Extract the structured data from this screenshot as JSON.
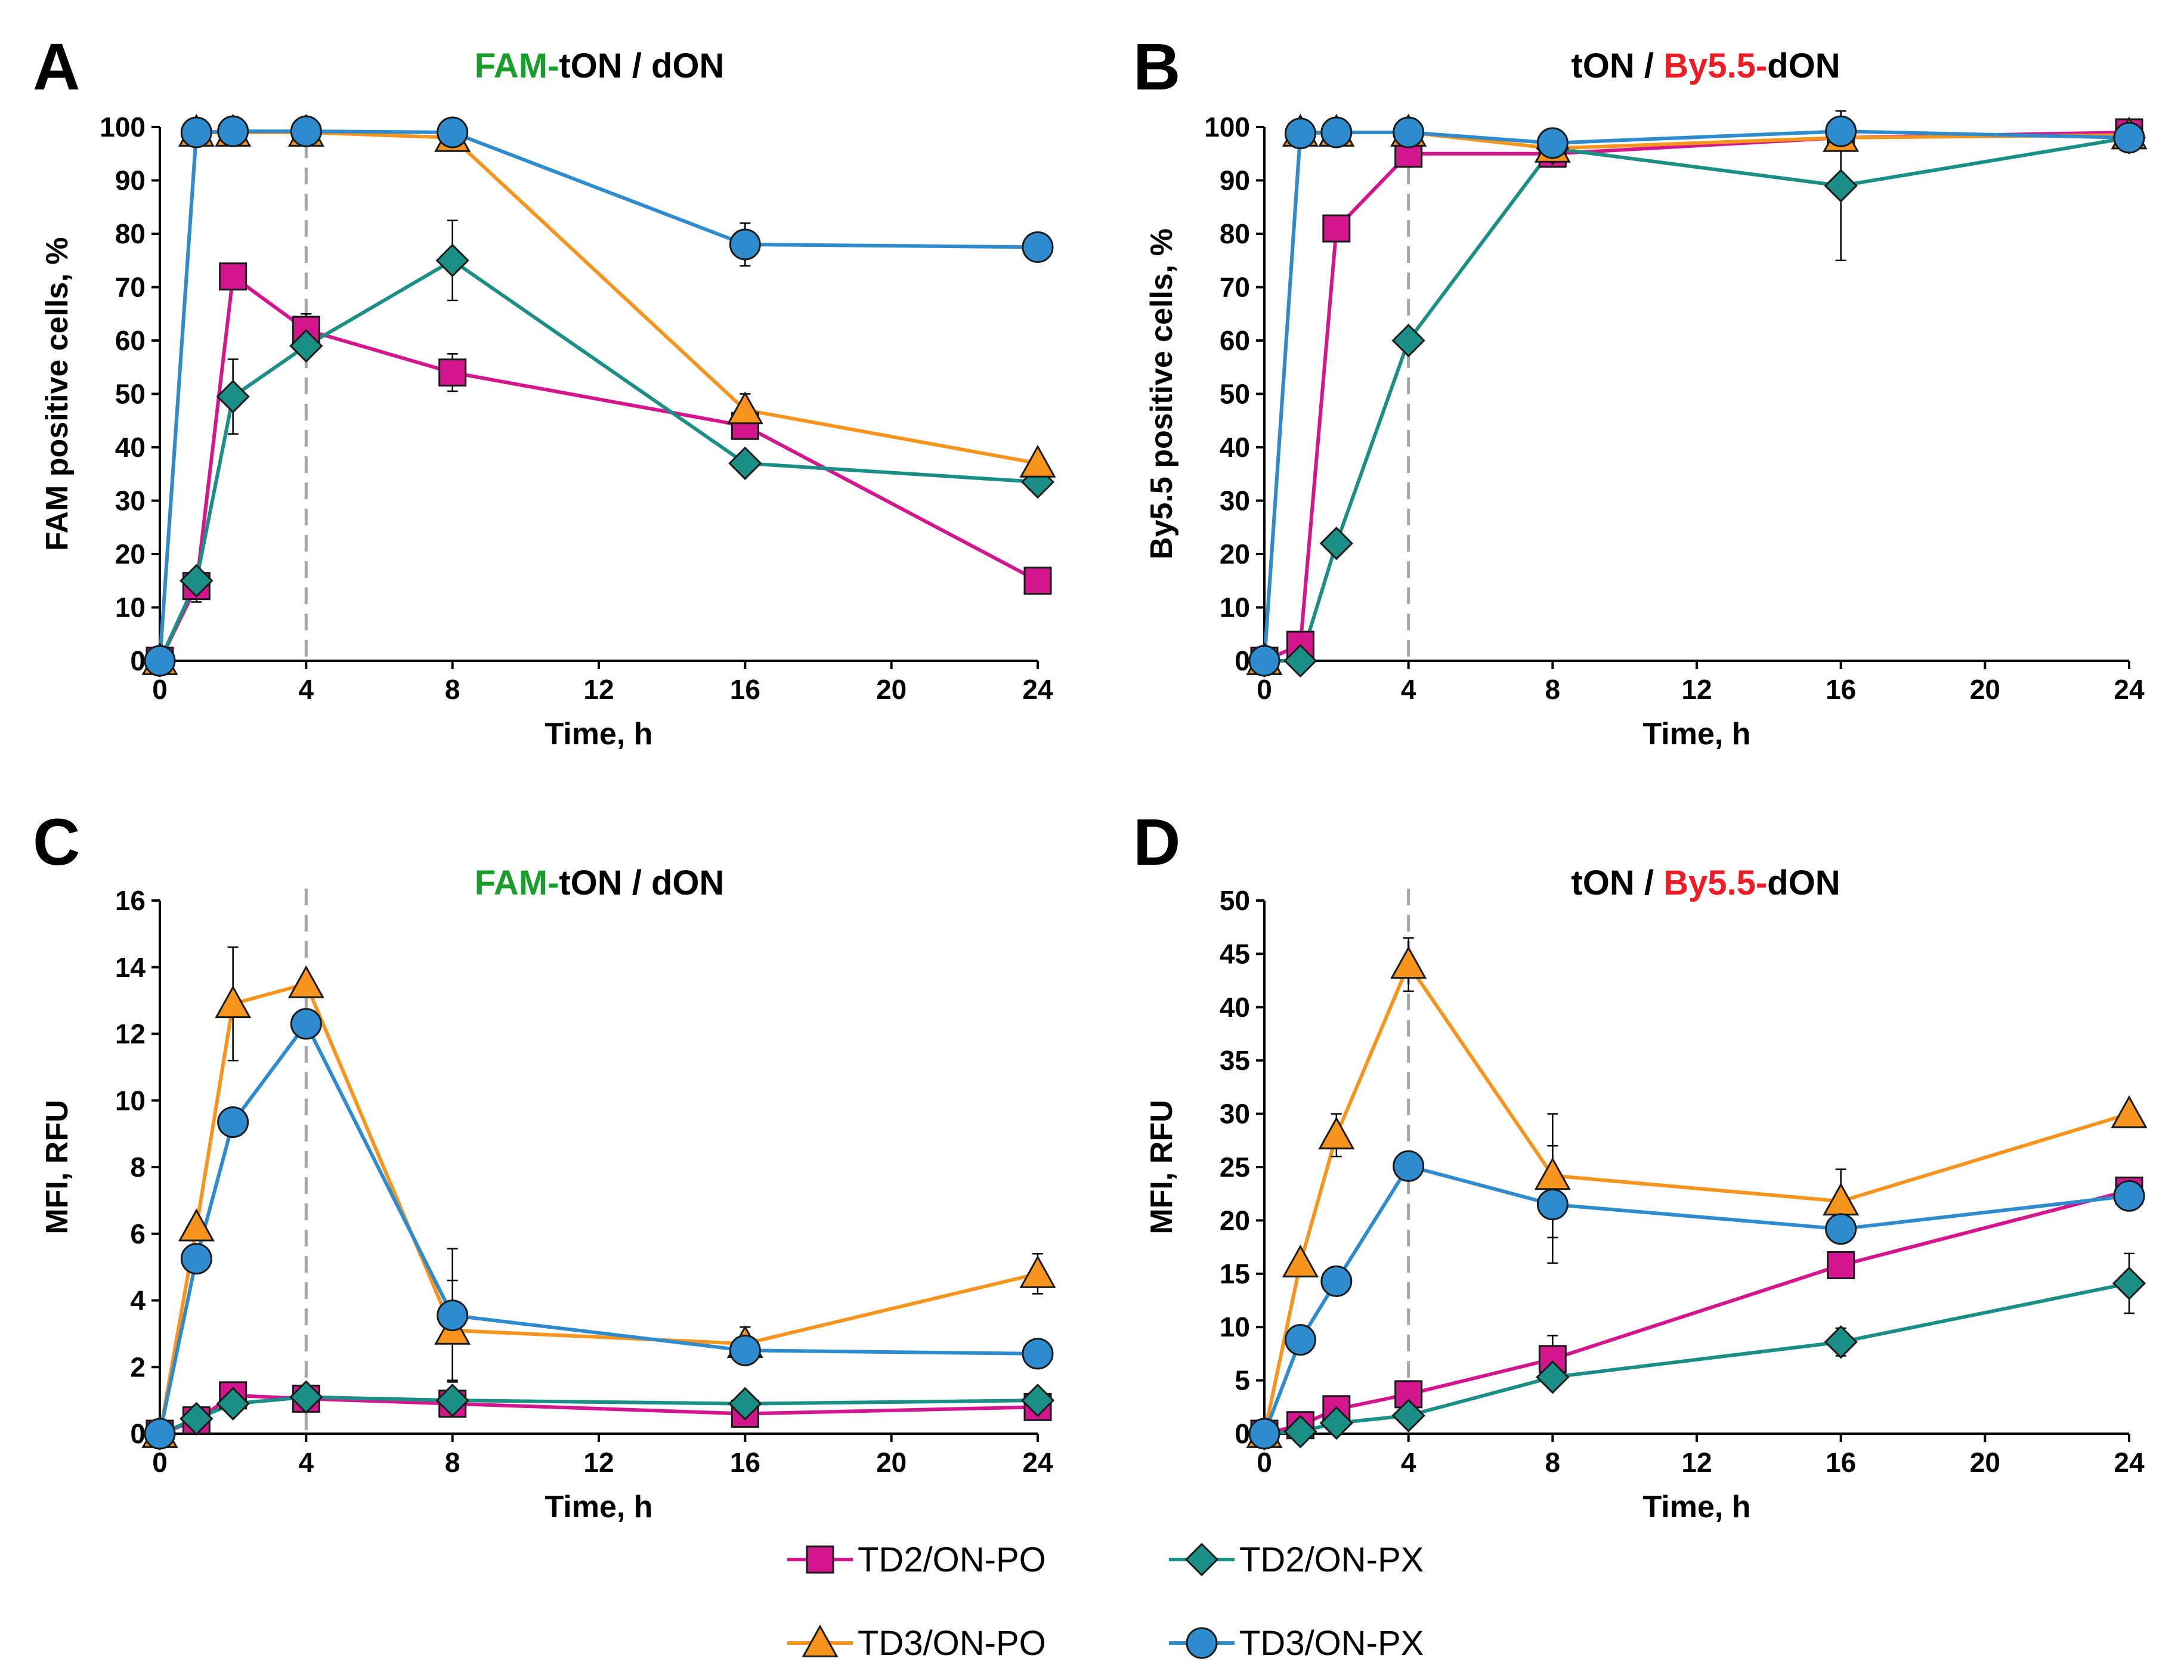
{
  "colors": {
    "TD2/ON-PO": "#d4168e",
    "TD2/ON-PX": "#1b8f86",
    "TD3/ON-PO": "#f7941d",
    "TD3/ON-PX": "#2e8bcd",
    "fam_green": "#1a9e2b",
    "by_red": "#ee1c24",
    "dashed": "#a6a6a6"
  },
  "legend": {
    "items": [
      {
        "name": "TD2/ON-PO",
        "marker": "square"
      },
      {
        "name": "TD2/ON-PX",
        "marker": "diamond"
      },
      {
        "name": "TD3/ON-PO",
        "marker": "triangle"
      },
      {
        "name": "TD3/ON-PX",
        "marker": "circle"
      }
    ]
  },
  "chart_data": [
    {
      "id": "A",
      "type": "line",
      "letter": "A",
      "title_parts": [
        {
          "text": "FAM-",
          "color": "fam_green"
        },
        {
          "text": "tON / dON",
          "color": "black"
        }
      ],
      "xlabel": "Time, h",
      "ylabel": "FAM positive cells, %",
      "xlim": [
        0,
        24
      ],
      "xticks": [
        0,
        4,
        8,
        12,
        16,
        20,
        24
      ],
      "ylim": [
        0,
        100
      ],
      "yticks": [
        0,
        10,
        20,
        30,
        40,
        50,
        60,
        70,
        80,
        90,
        100
      ],
      "vline_x": 4,
      "x": [
        0,
        1,
        2,
        4,
        8,
        16,
        24
      ],
      "series": [
        {
          "name": "TD2/ON-PO",
          "marker": "square",
          "values": [
            0,
            14,
            72,
            62,
            54,
            44,
            15
          ],
          "errors": [
            0,
            3,
            0,
            3,
            3.5,
            2,
            0
          ]
        },
        {
          "name": "TD3/ON-PO",
          "marker": "triangle",
          "values": [
            0,
            99,
            99,
            99,
            98,
            47,
            37
          ],
          "errors": [
            0,
            0,
            0,
            0,
            1,
            3,
            0
          ]
        },
        {
          "name": "TD2/ON-PX",
          "marker": "diamond",
          "values": [
            0,
            15,
            49.5,
            59,
            75,
            37,
            33.5
          ],
          "errors": [
            0,
            2,
            7,
            0,
            7.5,
            0,
            0
          ]
        },
        {
          "name": "TD3/ON-PX",
          "marker": "circle",
          "values": [
            0,
            99,
            99.2,
            99.2,
            99,
            78,
            77.5
          ],
          "errors": [
            0,
            0,
            0,
            0,
            0,
            4,
            2
          ]
        }
      ]
    },
    {
      "id": "B",
      "type": "line",
      "letter": "B",
      "title_parts": [
        {
          "text": "tON / ",
          "color": "black"
        },
        {
          "text": "By5.5-",
          "color": "by_red"
        },
        {
          "text": "dON",
          "color": "black"
        }
      ],
      "xlabel": "Time, h",
      "ylabel": "By5.5 positive cells, %",
      "xlim": [
        0,
        24
      ],
      "xticks": [
        0,
        4,
        8,
        12,
        16,
        20,
        24
      ],
      "ylim": [
        0,
        100
      ],
      "yticks": [
        0,
        10,
        20,
        30,
        40,
        50,
        60,
        70,
        80,
        90,
        100
      ],
      "vline_x": 4,
      "x": [
        0,
        1,
        2,
        4,
        8,
        16,
        24
      ],
      "series": [
        {
          "name": "TD2/ON-PO",
          "marker": "square",
          "values": [
            0,
            3,
            81,
            95,
            95,
            98,
            99
          ],
          "errors": [
            0,
            0,
            0,
            0,
            0,
            0,
            0
          ]
        },
        {
          "name": "TD3/ON-PO",
          "marker": "triangle",
          "values": [
            0,
            99,
            99,
            99,
            96,
            98,
            98.5
          ],
          "errors": [
            0,
            0,
            0,
            0,
            0,
            0,
            0
          ]
        },
        {
          "name": "TD2/ON-PX",
          "marker": "diamond",
          "values": [
            0,
            0,
            22,
            60,
            96,
            89,
            98
          ],
          "errors": [
            0,
            0,
            0,
            0,
            0,
            14,
            0
          ]
        },
        {
          "name": "TD3/ON-PX",
          "marker": "circle",
          "values": [
            0,
            98.8,
            99,
            99,
            97,
            99.2,
            98
          ],
          "errors": [
            0,
            0,
            0,
            0,
            0,
            0,
            0
          ]
        }
      ]
    },
    {
      "id": "C",
      "type": "line",
      "letter": "C",
      "title_parts": [
        {
          "text": "FAM-",
          "color": "fam_green"
        },
        {
          "text": "tON / dON",
          "color": "black"
        }
      ],
      "xlabel": "Time, h",
      "ylabel": "MFI, RFU",
      "xlim": [
        0,
        24
      ],
      "xticks": [
        0,
        4,
        8,
        12,
        16,
        20,
        24
      ],
      "ylim": [
        0,
        16
      ],
      "yticks": [
        0,
        2,
        4,
        6,
        8,
        10,
        12,
        14,
        16
      ],
      "vline_x": 4,
      "x": [
        0,
        1,
        2,
        4,
        8,
        16,
        24
      ],
      "series": [
        {
          "name": "TD2/ON-PO",
          "marker": "square",
          "values": [
            0,
            0.4,
            1.15,
            1.05,
            0.9,
            0.6,
            0.8
          ],
          "errors": [
            0,
            0,
            0,
            0,
            0,
            0,
            0
          ]
        },
        {
          "name": "TD3/ON-PO",
          "marker": "triangle",
          "values": [
            0,
            6.2,
            12.9,
            13.5,
            3.1,
            2.7,
            4.8
          ],
          "errors": [
            0,
            0,
            1.7,
            0,
            1.5,
            0.5,
            0.6
          ]
        },
        {
          "name": "TD2/ON-PX",
          "marker": "diamond",
          "values": [
            0,
            0.45,
            0.9,
            1.1,
            1.0,
            0.9,
            1.0
          ],
          "errors": [
            0,
            0,
            0,
            0,
            0,
            0,
            0
          ]
        },
        {
          "name": "TD3/ON-PX",
          "marker": "circle",
          "values": [
            0,
            5.25,
            9.35,
            12.3,
            3.55,
            2.5,
            2.4
          ],
          "errors": [
            0,
            0,
            0,
            0,
            2.0,
            0,
            0
          ]
        }
      ]
    },
    {
      "id": "D",
      "type": "line",
      "letter": "D",
      "title_parts": [
        {
          "text": "tON / ",
          "color": "black"
        },
        {
          "text": "By5.5-",
          "color": "by_red"
        },
        {
          "text": "dON",
          "color": "black"
        }
      ],
      "xlabel": "Time, h",
      "ylabel": "MFI, RFU",
      "xlim": [
        0,
        24
      ],
      "xticks": [
        0,
        4,
        8,
        12,
        16,
        20,
        24
      ],
      "ylim": [
        0,
        50
      ],
      "yticks": [
        0,
        5,
        10,
        15,
        20,
        25,
        30,
        35,
        40,
        45,
        50
      ],
      "vline_x": 4,
      "x": [
        0,
        1,
        2,
        4,
        8,
        16,
        24
      ],
      "series": [
        {
          "name": "TD2/ON-PO",
          "marker": "square",
          "values": [
            0,
            0.8,
            2.3,
            3.7,
            7.0,
            15.8,
            22.8
          ],
          "errors": [
            0,
            0,
            0,
            0,
            2.2,
            0,
            0
          ]
        },
        {
          "name": "TD3/ON-PO",
          "marker": "triangle",
          "values": [
            0,
            16,
            28,
            44,
            24.2,
            21.8,
            30
          ],
          "errors": [
            0,
            0,
            2,
            2.5,
            5.8,
            3,
            0
          ]
        },
        {
          "name": "TD2/ON-PX",
          "marker": "diamond",
          "values": [
            0,
            0.2,
            1.0,
            1.7,
            5.3,
            8.6,
            14.1
          ],
          "errors": [
            0,
            0,
            0,
            0,
            0,
            1.3,
            2.8
          ]
        },
        {
          "name": "TD3/ON-PX",
          "marker": "circle",
          "values": [
            0,
            8.8,
            14.3,
            25.1,
            21.5,
            19.2,
            22.3
          ],
          "errors": [
            0,
            0,
            0,
            0,
            5.5,
            0,
            0
          ]
        }
      ]
    }
  ]
}
